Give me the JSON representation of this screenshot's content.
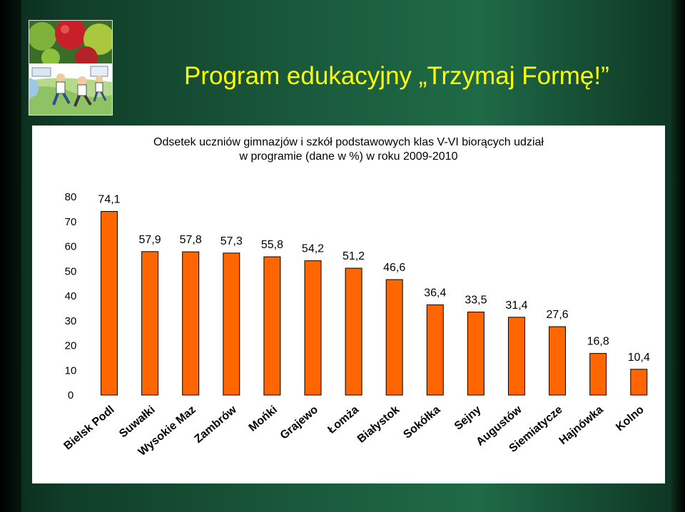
{
  "slide": {
    "title": "Program edukacyjny „Trzymaj Formę!”",
    "background_color": "#1a5a3c",
    "title_color": "#ffff00",
    "logo_icon": "apples-and-running-kids-logo"
  },
  "chart_data": {
    "type": "bar",
    "title_line1": "Odsetek uczniów gimnazjów i szkół podstawowych klas V-VI biorących udział",
    "title_line2": "w programie (dane w %) w roku 2009-2010",
    "categories": [
      "Bielsk Podl",
      "Suwałki",
      "Wysokie Maz",
      "Zambrów",
      "Mońki",
      "Grajewo",
      "Łomża",
      "Białystok",
      "Sokółka",
      "Sejny",
      "Augustów",
      "Siemiatycze",
      "Hajnówka",
      "Kolno"
    ],
    "values": [
      74.1,
      57.9,
      57.8,
      57.3,
      55.8,
      54.2,
      51.2,
      46.6,
      36.4,
      33.5,
      31.4,
      27.6,
      16.8,
      10.4
    ],
    "value_labels": [
      "74,1",
      "57,9",
      "57,8",
      "57,3",
      "55,8",
      "54,2",
      "51,2",
      "46,6",
      "36,4",
      "33,5",
      "31,4",
      "27,6",
      "16,8",
      "10,4"
    ],
    "yticks": [
      "0",
      "10",
      "20",
      "30",
      "40",
      "50",
      "60",
      "70",
      "80"
    ],
    "ylim": [
      0,
      80
    ],
    "xlabel": "",
    "ylabel": "",
    "grid": false,
    "bar_color": "#ff6600",
    "bar_edge_color": "#000000"
  }
}
